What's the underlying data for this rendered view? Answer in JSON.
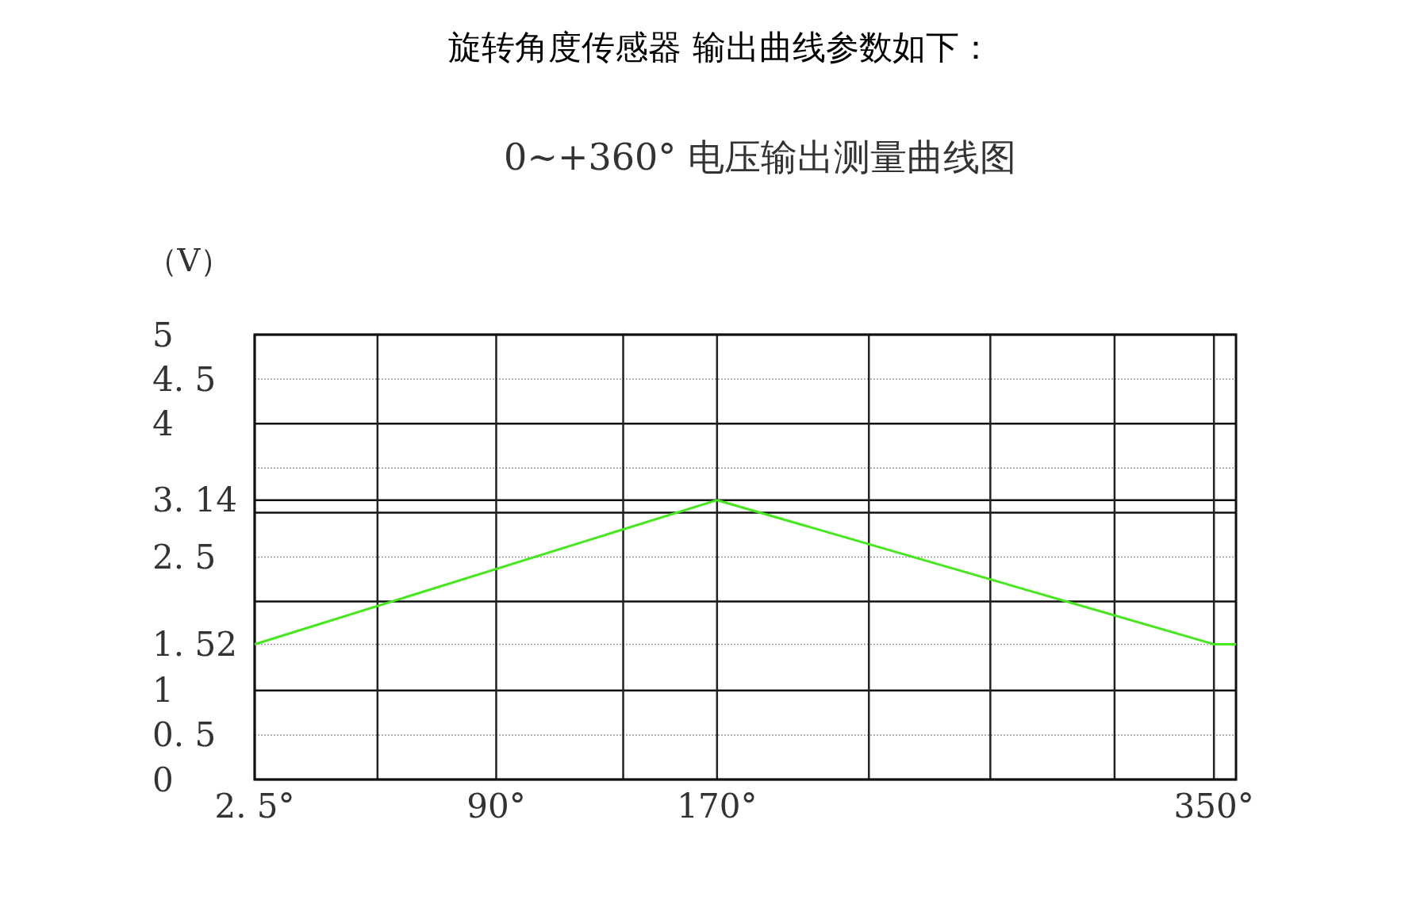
{
  "chart_data": {
    "type": "line",
    "title": "旋转角度传感器 输出曲线参数如下：",
    "subtitle": "0~+360°  电压输出测量曲线图",
    "ylabel": "（V）",
    "x": [
      2.5,
      170,
      350,
      358
    ],
    "series": [
      {
        "color": "#44e81c",
        "values": [
          1.52,
          3.14,
          1.52,
          1.52
        ]
      }
    ],
    "xlim": [
      2.5,
      358
    ],
    "xticks": [
      {
        "value": 2.5,
        "label": "2. 5°"
      },
      {
        "value": 47,
        "label": null
      },
      {
        "value": 90,
        "label": "90°"
      },
      {
        "value": 136,
        "label": null
      },
      {
        "value": 170,
        "label": "170°"
      },
      {
        "value": 225,
        "label": null
      },
      {
        "value": 269,
        "label": null
      },
      {
        "value": 314,
        "label": null
      },
      {
        "value": 350,
        "label": "350°"
      }
    ],
    "ylim": [
      0,
      5
    ],
    "yticks": [
      0,
      {
        "value": 0.5,
        "label": "0. 5"
      },
      1,
      {
        "value": 1.52,
        "label": "1. 52"
      },
      {
        "value": 2,
        "label": null
      },
      {
        "value": 2.5,
        "label": "2. 5"
      },
      {
        "value": 3,
        "label": null
      },
      {
        "value": 3.14,
        "label": "3. 14"
      },
      {
        "value": 3.5,
        "label": null
      },
      4,
      {
        "value": 4.5,
        "label": "4. 5"
      },
      5
    ],
    "grid": true,
    "marker": "none",
    "line_style": "solid"
  }
}
